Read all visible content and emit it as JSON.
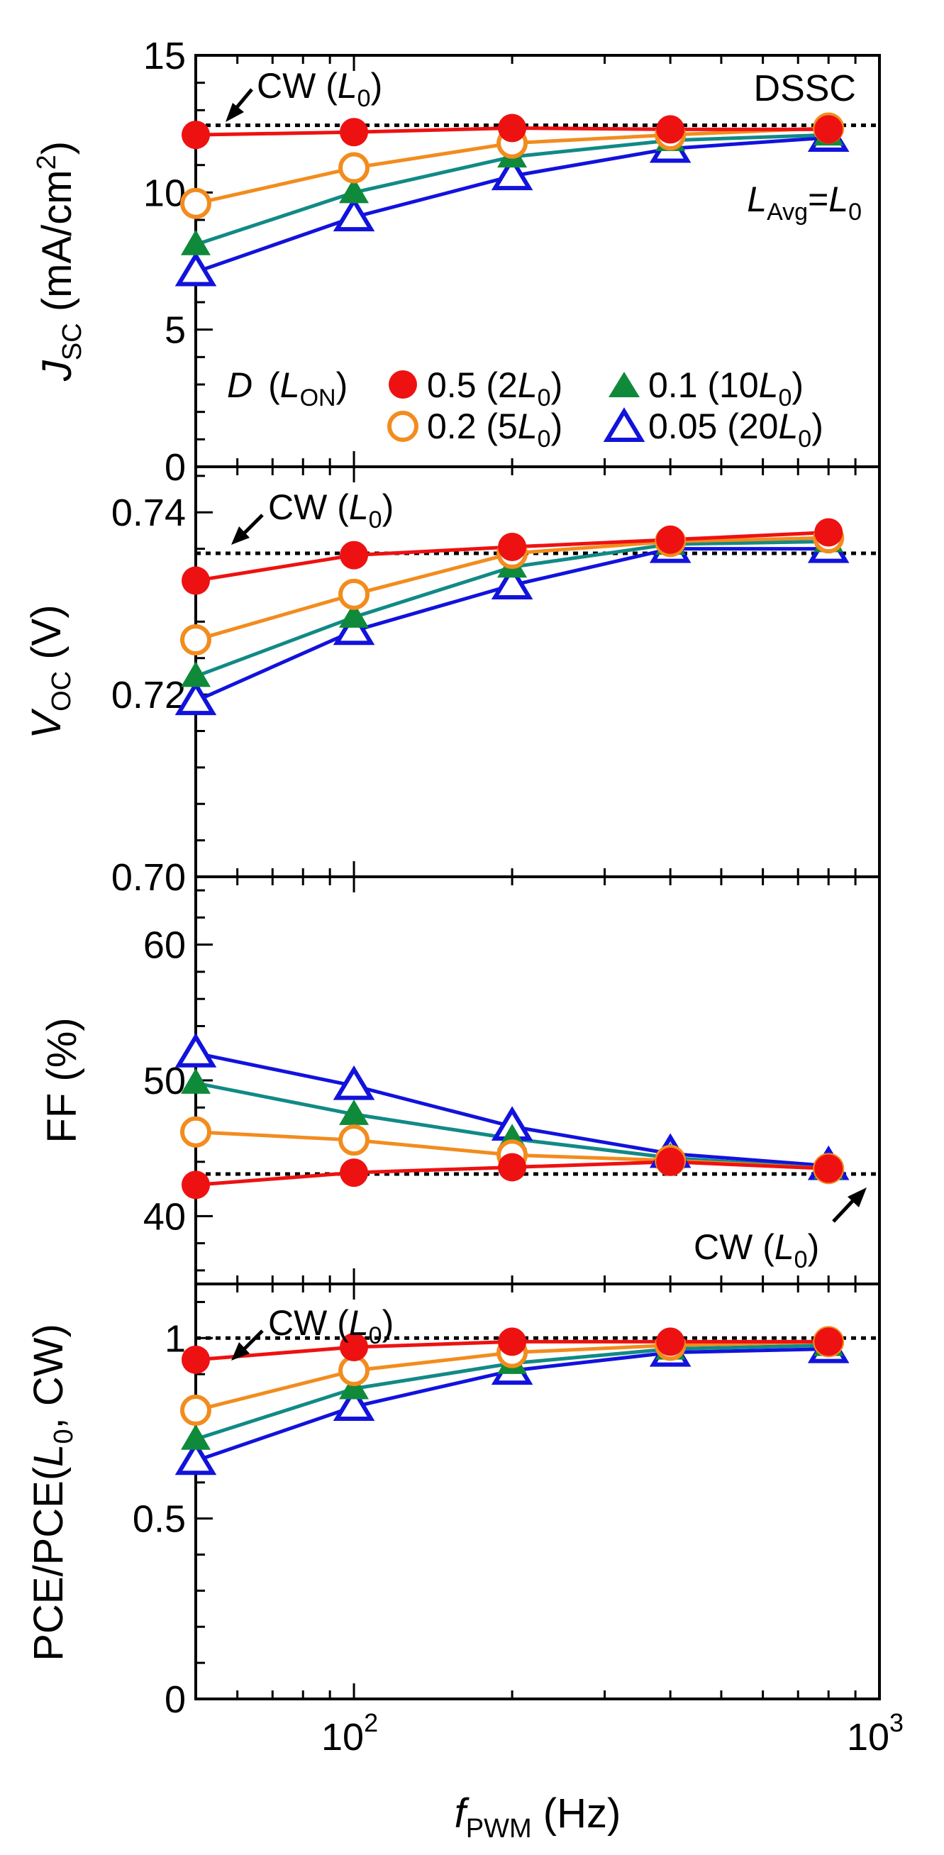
{
  "chart_data": [
    {
      "type": "line",
      "x": [
        50,
        100,
        200,
        400,
        800
      ],
      "xlim": [
        50,
        1000
      ],
      "xscale": "log",
      "ylim": [
        0,
        15
      ],
      "ylabel": {
        "main": "J",
        "sub": "SC",
        "rest": " (mA/cm",
        "sup": "2",
        "end": ")"
      },
      "yticks": [
        "0",
        "5",
        "10",
        "15"
      ],
      "ytick_values": [
        0,
        5,
        10,
        15
      ],
      "reference": {
        "value": 12.45,
        "label": "CW (",
        "label_var": "L",
        "label_sub": "0",
        "label_end": ")"
      },
      "annotation_top_right": "DSSC",
      "annotation_condition": {
        "var1": "L",
        "sub1": "Avg",
        "eq": "=",
        "var2": "L",
        "sub2": "0"
      },
      "series": [
        {
          "name": "0.5 (2L0)",
          "marker": "filled-circle",
          "color": "#ee1111",
          "values": [
            12.1,
            12.2,
            12.35,
            12.3,
            12.3
          ]
        },
        {
          "name": "0.2 (5L0)",
          "marker": "open-circle",
          "color": "#f28c1e",
          "values": [
            9.6,
            10.9,
            11.8,
            12.1,
            12.35
          ]
        },
        {
          "name": "0.1 (10L0)",
          "marker": "filled-triangle",
          "color": "#0e8a3a",
          "line_color": "#118a86",
          "values": [
            8.1,
            10.0,
            11.3,
            11.9,
            12.1
          ]
        },
        {
          "name": "0.05 (20L0)",
          "marker": "open-triangle",
          "color": "#1212dd",
          "values": [
            7.1,
            9.1,
            10.6,
            11.6,
            12.0
          ]
        }
      ],
      "legend": {
        "position": "bottom",
        "prefix_var": "D",
        "prefix_paren_open": "(",
        "prefix_paren_var": "L",
        "prefix_paren_sub": "ON",
        "prefix_paren_close": ")",
        "entries": [
          {
            "value": "0.5 (2",
            "var": "L",
            "sub": "0",
            "end": ")"
          },
          {
            "value": "0.1 (10",
            "var": "L",
            "sub": "0",
            "end": ")"
          },
          {
            "value": "0.2 (5",
            "var": "L",
            "sub": "0",
            "end": ")"
          },
          {
            "value": "0.05 (20",
            "var": "L",
            "sub": "0",
            "end": ")"
          }
        ]
      }
    },
    {
      "type": "line",
      "x": [
        50,
        100,
        200,
        400,
        800
      ],
      "xlim": [
        50,
        1000
      ],
      "xscale": "log",
      "ylim": [
        0.7,
        0.745
      ],
      "ylabel": {
        "main": "V",
        "sub": "OC",
        "rest": " (V)"
      },
      "yticks": [
        "0.70",
        "0.72",
        "0.74"
      ],
      "ytick_values": [
        0.7,
        0.72,
        0.74
      ],
      "reference": {
        "value": 0.7355,
        "label": "CW (",
        "label_var": "L",
        "label_sub": "0",
        "label_end": ")"
      },
      "series": [
        {
          "name": "0.5 (2L0)",
          "values": [
            0.7325,
            0.7353,
            0.7362,
            0.737,
            0.7378
          ]
        },
        {
          "name": "0.2 (5L0)",
          "values": [
            0.726,
            0.731,
            0.7355,
            0.7368,
            0.7372
          ]
        },
        {
          "name": "0.1 (10L0)",
          "values": [
            0.722,
            0.7285,
            0.734,
            0.7365,
            0.7368
          ]
        },
        {
          "name": "0.05 (20L0)",
          "values": [
            0.7193,
            0.727,
            0.732,
            0.736,
            0.736
          ]
        }
      ]
    },
    {
      "type": "line",
      "x": [
        50,
        100,
        200,
        400,
        800
      ],
      "xlim": [
        50,
        1000
      ],
      "xscale": "log",
      "ylim": [
        35,
        65
      ],
      "ylabel": {
        "main": "FF (%)"
      },
      "yticks": [
        "40",
        "50",
        "60"
      ],
      "ytick_values": [
        40,
        50,
        60
      ],
      "reference": {
        "value": 43.1,
        "label": "CW (",
        "label_var": "L",
        "label_sub": "0",
        "label_end": ")"
      },
      "series": [
        {
          "name": "0.5 (2L0)",
          "values": [
            42.3,
            43.2,
            43.6,
            44.0,
            43.5
          ]
        },
        {
          "name": "0.2 (5L0)",
          "values": [
            46.2,
            45.6,
            44.5,
            44.1,
            43.5
          ]
        },
        {
          "name": "0.1 (10L0)",
          "values": [
            49.8,
            47.5,
            45.7,
            44.3,
            43.5
          ]
        },
        {
          "name": "0.05 (20L0)",
          "values": [
            52.0,
            49.6,
            46.6,
            44.6,
            43.7
          ]
        }
      ]
    },
    {
      "type": "line",
      "x": [
        50,
        100,
        200,
        400,
        800
      ],
      "xlim": [
        50,
        1000
      ],
      "xscale": "log",
      "ylim": [
        0,
        1.15
      ],
      "ylabel": {
        "main": "PCE/PCE(",
        "var": "L",
        "sub": "0",
        "rest": ", CW)"
      },
      "yticks": [
        "0",
        "0.5",
        "1"
      ],
      "ytick_values": [
        0,
        0.5,
        1
      ],
      "reference": {
        "value": 1.0,
        "label": "CW (",
        "label_var": "L",
        "label_sub": "0",
        "label_end": ")"
      },
      "xlabel": {
        "var": "f",
        "sub": "PWM",
        "rest": " (Hz)"
      },
      "xtick_labels": [
        {
          "value": 100,
          "base": "10",
          "exp": "2"
        },
        {
          "value": 1000,
          "base": "10",
          "exp": "3"
        }
      ],
      "series": [
        {
          "name": "0.5 (2L0)",
          "values": [
            0.94,
            0.975,
            0.99,
            0.99,
            0.99
          ]
        },
        {
          "name": "0.2 (5L0)",
          "values": [
            0.8,
            0.91,
            0.96,
            0.98,
            0.99
          ]
        },
        {
          "name": "0.1 (10L0)",
          "values": [
            0.72,
            0.86,
            0.93,
            0.97,
            0.98
          ]
        },
        {
          "name": "0.05 (20L0)",
          "values": [
            0.66,
            0.81,
            0.91,
            0.96,
            0.97
          ]
        }
      ]
    }
  ]
}
